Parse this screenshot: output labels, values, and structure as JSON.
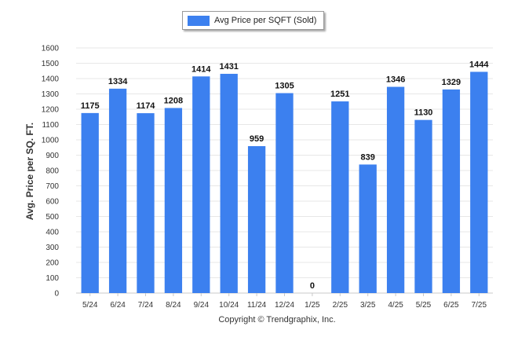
{
  "colors": {
    "bar": "#3c80ef",
    "grid": "#e7e7e7",
    "axis": "#c8c8c8",
    "text": "#333333"
  },
  "chart_data": {
    "type": "bar",
    "legend": {
      "label": "Avg Price per SQFT (Sold)",
      "placement": "top-center"
    },
    "categories": [
      "5/24",
      "6/24",
      "7/24",
      "8/24",
      "9/24",
      "10/24",
      "11/24",
      "12/24",
      "1/25",
      "2/25",
      "3/25",
      "4/25",
      "5/25",
      "6/25",
      "7/25"
    ],
    "series": [
      {
        "name": "Avg Price per SQFT (Sold)",
        "values": [
          1175,
          1334,
          1174,
          1208,
          1414,
          1431,
          959,
          1305,
          0,
          1251,
          839,
          1346,
          1130,
          1329,
          1444
        ]
      }
    ],
    "ylabel": "Avg. Price per SQ. FT.",
    "xlabel": "",
    "ylim": [
      0,
      1600
    ],
    "yticks": [
      0,
      100,
      200,
      300,
      400,
      500,
      600,
      700,
      800,
      900,
      1000,
      1100,
      1200,
      1300,
      1400,
      1500,
      1600
    ],
    "grid": true,
    "data_labels": true
  },
  "footer": {
    "copyright": "Copyright © Trendgraphix, Inc."
  }
}
